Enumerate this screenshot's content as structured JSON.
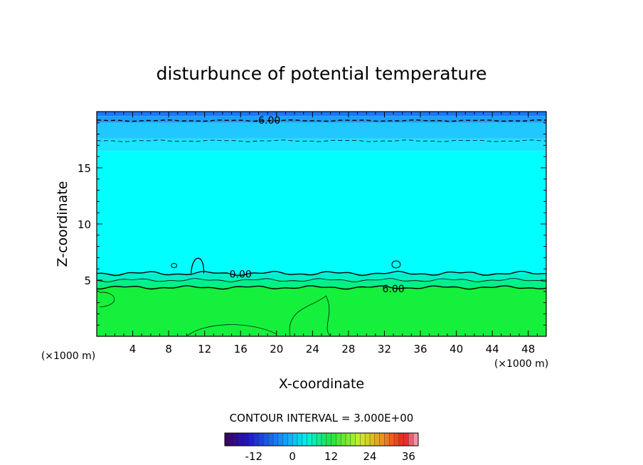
{
  "chart_data": {
    "type": "contour",
    "title": "disturbunce of potential temperature",
    "xlabel": "X-coordinate",
    "ylabel": "Z-coordinate",
    "x_unit": "(×1000 m)",
    "z_unit": "(×1000 m)",
    "xlim": [
      0,
      50
    ],
    "ylim": [
      0,
      20
    ],
    "x_ticks": [
      4,
      8,
      12,
      16,
      20,
      24,
      28,
      32,
      36,
      40,
      44,
      48
    ],
    "y_ticks": [
      5,
      10,
      15
    ],
    "contour_interval_text": "CONTOUR INTERVAL = 3.000E+00",
    "contour_labels": [
      {
        "text": "-6.00",
        "x": 19,
        "z": 19.3
      },
      {
        "text": "0.00",
        "x": 16,
        "z": 5.6
      },
      {
        "text": "6.00",
        "x": 33,
        "z": 4.3
      }
    ],
    "bands": [
      {
        "z_from": 19.6,
        "z_to": 20,
        "color": "#1a78ff"
      },
      {
        "z_from": 19.0,
        "z_to": 19.6,
        "color": "#1aa0ff"
      },
      {
        "z_from": 17.6,
        "z_to": 19.0,
        "color": "#20c8ff"
      },
      {
        "z_from": 16.5,
        "z_to": 17.6,
        "color": "#1ae4ff"
      },
      {
        "z_from": 5.6,
        "z_to": 16.5,
        "color": "#00ffff"
      },
      {
        "z_from": 5.0,
        "z_to": 5.6,
        "color": "#00f0c8"
      },
      {
        "z_from": 4.4,
        "z_to": 5.0,
        "color": "#00f08c"
      },
      {
        "z_from": 0,
        "z_to": 4.4,
        "color": "#14f03c"
      }
    ],
    "colorbar": {
      "ticks": [
        -12,
        0,
        12,
        24,
        36
      ],
      "range": [
        -21,
        39
      ]
    }
  }
}
